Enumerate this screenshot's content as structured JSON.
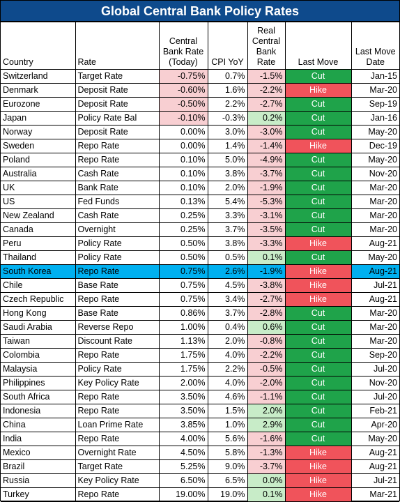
{
  "title": "Global Central Bank Policy Rates",
  "headers": {
    "country": "Country",
    "rate": "Rate",
    "central_bank_rate": [
      "Central",
      "Bank Rate",
      "(Today)"
    ],
    "cpi": "CPI YoY",
    "real_rate": [
      "Real",
      "Central",
      "Bank",
      "Rate"
    ],
    "last_move": "Last Move",
    "last_move_date": [
      "Last Move",
      "Date"
    ]
  },
  "colors": {
    "title_bg": "#0e4a8c",
    "cut": "#1fa34a",
    "hike": "#f0535b",
    "negative_shade": "#f8cfd2",
    "positive_shade": "#c8ecc8",
    "highlight_row": "#00b0f0"
  },
  "highlighted_country": "South Korea",
  "rows": [
    {
      "country": "Switzerland",
      "rate": "Target Rate",
      "cb": "-0.75%",
      "cpi": "0.7%",
      "real": "-1.5%",
      "move": "Cut",
      "date": "Jan-15"
    },
    {
      "country": "Denmark",
      "rate": "Deposit Rate",
      "cb": "-0.60%",
      "cpi": "1.6%",
      "real": "-2.2%",
      "move": "Hike",
      "date": "Mar-20"
    },
    {
      "country": "Eurozone",
      "rate": "Deposit Rate",
      "cb": "-0.50%",
      "cpi": "2.2%",
      "real": "-2.7%",
      "move": "Cut",
      "date": "Sep-19"
    },
    {
      "country": "Japan",
      "rate": "Policy Rate Bal",
      "cb": "-0.10%",
      "cpi": "-0.3%",
      "real": "0.2%",
      "move": "Cut",
      "date": "Jan-16"
    },
    {
      "country": "Norway",
      "rate": "Deposit Rate",
      "cb": "0.00%",
      "cpi": "3.0%",
      "real": "-3.0%",
      "move": "Cut",
      "date": "May-20"
    },
    {
      "country": "Sweden",
      "rate": "Repo Rate",
      "cb": "0.00%",
      "cpi": "1.4%",
      "real": "-1.4%",
      "move": "Hike",
      "date": "Dec-19"
    },
    {
      "country": "Poland",
      "rate": "Repo Rate",
      "cb": "0.10%",
      "cpi": "5.0%",
      "real": "-4.9%",
      "move": "Cut",
      "date": "May-20"
    },
    {
      "country": "Australia",
      "rate": "Cash Rate",
      "cb": "0.10%",
      "cpi": "3.8%",
      "real": "-3.7%",
      "move": "Cut",
      "date": "Nov-20"
    },
    {
      "country": "UK",
      "rate": "Bank Rate",
      "cb": "0.10%",
      "cpi": "2.0%",
      "real": "-1.9%",
      "move": "Cut",
      "date": "Mar-20"
    },
    {
      "country": "US",
      "rate": "Fed Funds",
      "cb": "0.13%",
      "cpi": "5.4%",
      "real": "-5.3%",
      "move": "Cut",
      "date": "Mar-20"
    },
    {
      "country": "New Zealand",
      "rate": "Cash Rate",
      "cb": "0.25%",
      "cpi": "3.3%",
      "real": "-3.1%",
      "move": "Cut",
      "date": "Mar-20"
    },
    {
      "country": "Canada",
      "rate": "Overnight",
      "cb": "0.25%",
      "cpi": "3.7%",
      "real": "-3.5%",
      "move": "Cut",
      "date": "Mar-20"
    },
    {
      "country": "Peru",
      "rate": "Policy Rate",
      "cb": "0.50%",
      "cpi": "3.8%",
      "real": "-3.3%",
      "move": "Hike",
      "date": "Aug-21"
    },
    {
      "country": "Thailand",
      "rate": "Policy Rate",
      "cb": "0.50%",
      "cpi": "0.5%",
      "real": "0.1%",
      "move": "Cut",
      "date": "May-20"
    },
    {
      "country": "South Korea",
      "rate": "Repo Rate",
      "cb": "0.75%",
      "cpi": "2.6%",
      "real": "-1.9%",
      "move": "Hike",
      "date": "Aug-21"
    },
    {
      "country": "Chile",
      "rate": "Base Rate",
      "cb": "0.75%",
      "cpi": "4.5%",
      "real": "-3.8%",
      "move": "Hike",
      "date": "Jul-21"
    },
    {
      "country": "Czech Republic",
      "rate": "Repo Rate",
      "cb": "0.75%",
      "cpi": "3.4%",
      "real": "-2.7%",
      "move": "Hike",
      "date": "Aug-21"
    },
    {
      "country": "Hong Kong",
      "rate": "Base Rate",
      "cb": "0.86%",
      "cpi": "3.7%",
      "real": "-2.8%",
      "move": "Cut",
      "date": "Mar-20"
    },
    {
      "country": "Saudi Arabia",
      "rate": "Reverse Repo",
      "cb": "1.00%",
      "cpi": "0.4%",
      "real": "0.6%",
      "move": "Cut",
      "date": "Mar-20"
    },
    {
      "country": "Taiwan",
      "rate": "Discount Rate",
      "cb": "1.13%",
      "cpi": "2.0%",
      "real": "-0.8%",
      "move": "Cut",
      "date": "Mar-20"
    },
    {
      "country": "Colombia",
      "rate": "Repo Rate",
      "cb": "1.75%",
      "cpi": "4.0%",
      "real": "-2.2%",
      "move": "Cut",
      "date": "Sep-20"
    },
    {
      "country": "Malaysia",
      "rate": "Policy Rate",
      "cb": "1.75%",
      "cpi": "2.2%",
      "real": "-0.5%",
      "move": "Cut",
      "date": "Jul-20"
    },
    {
      "country": "Philippines",
      "rate": "Key Policy Rate",
      "cb": "2.00%",
      "cpi": "4.0%",
      "real": "-2.0%",
      "move": "Cut",
      "date": "Nov-20"
    },
    {
      "country": "South Africa",
      "rate": "Repo Rate",
      "cb": "3.50%",
      "cpi": "4.6%",
      "real": "-1.1%",
      "move": "Cut",
      "date": "Jul-20"
    },
    {
      "country": "Indonesia",
      "rate": "Repo Rate",
      "cb": "3.50%",
      "cpi": "1.5%",
      "real": "2.0%",
      "move": "Cut",
      "date": "Feb-21"
    },
    {
      "country": "China",
      "rate": "Loan Prime Rate",
      "cb": "3.85%",
      "cpi": "1.0%",
      "real": "2.9%",
      "move": "Cut",
      "date": "Apr-20"
    },
    {
      "country": "India",
      "rate": "Repo Rate",
      "cb": "4.00%",
      "cpi": "5.6%",
      "real": "-1.6%",
      "move": "Cut",
      "date": "May-20"
    },
    {
      "country": "Mexico",
      "rate": "Overnight Rate",
      "cb": "4.50%",
      "cpi": "5.8%",
      "real": "-1.3%",
      "move": "Hike",
      "date": "Aug-21"
    },
    {
      "country": "Brazil",
      "rate": "Target Rate",
      "cb": "5.25%",
      "cpi": "9.0%",
      "real": "-3.7%",
      "move": "Hike",
      "date": "Aug-21"
    },
    {
      "country": "Russia",
      "rate": "Key Policy Rate",
      "cb": "6.50%",
      "cpi": "6.5%",
      "real": "0.0%",
      "move": "Hike",
      "date": "Jul-21"
    },
    {
      "country": "Turkey",
      "rate": "Repo Rate",
      "cb": "19.00%",
      "cpi": "19.0%",
      "real": "0.1%",
      "move": "Hike",
      "date": "Mar-21"
    }
  ]
}
